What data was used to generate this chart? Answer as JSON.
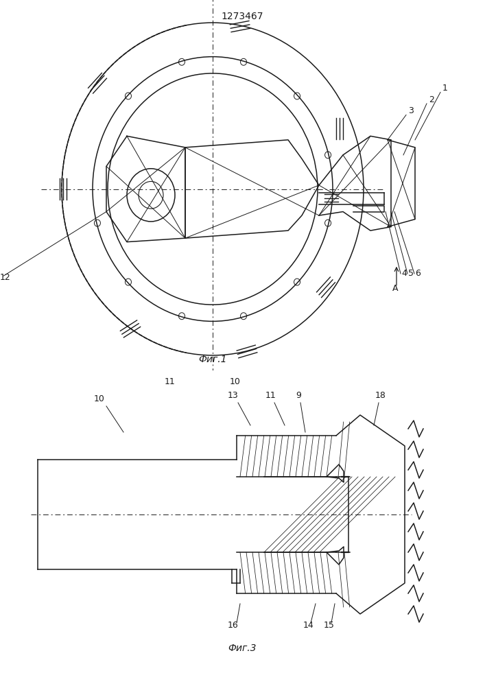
{
  "title": "1273467",
  "fig1_label": "Фиг.1",
  "fig3_label": "Фиг.3",
  "bg_color": "#ffffff",
  "lc": "#1a1a1a"
}
